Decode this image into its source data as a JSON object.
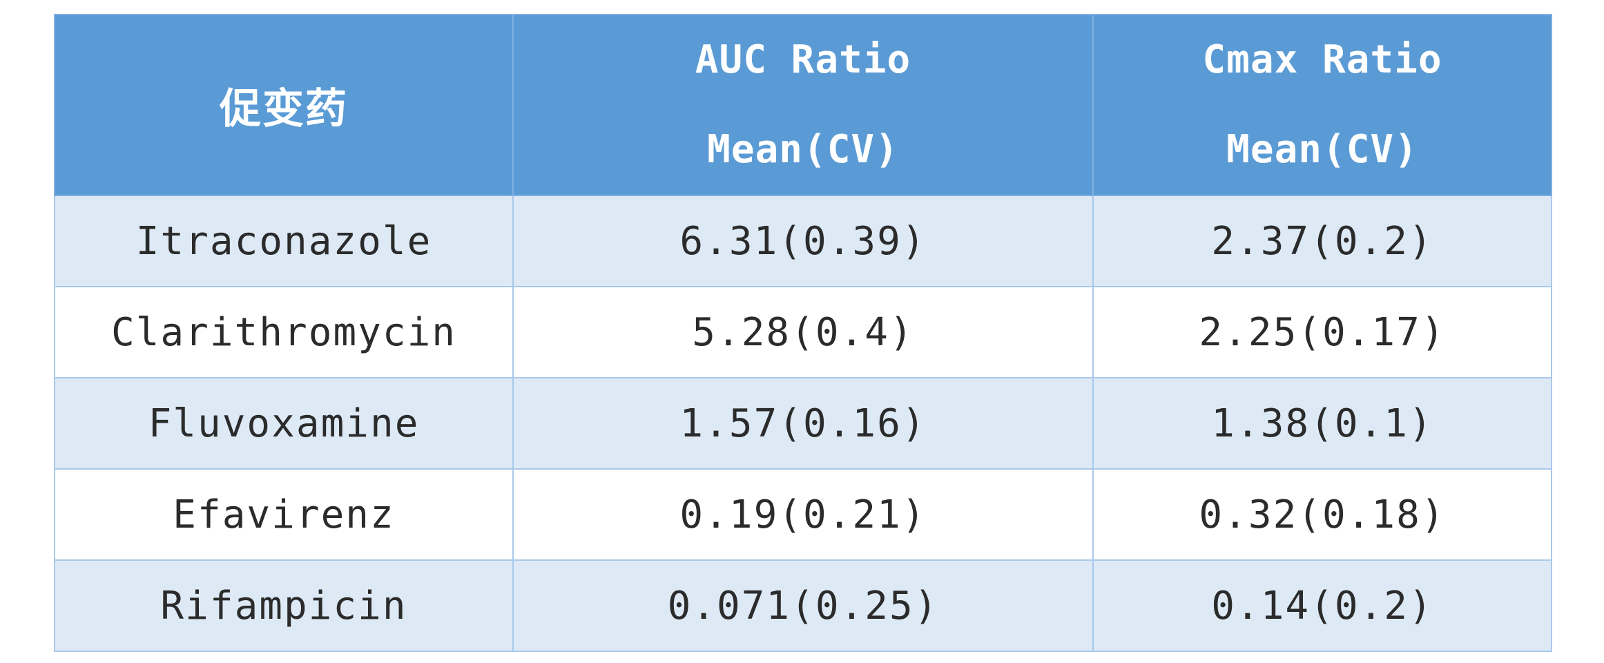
{
  "table": {
    "header": {
      "col1": "促变药",
      "col2_line1": "AUC Ratio",
      "col2_line2": "Mean(CV)",
      "col3_line1": "Cmax Ratio",
      "col3_line2": "Mean(CV)"
    },
    "rows": [
      {
        "drug": "Itraconazole",
        "auc": "6.31(0.39)",
        "cmax": "2.37(0.2)"
      },
      {
        "drug": "Clarithromycin",
        "auc": "5.28(0.4)",
        "cmax": "2.25(0.17)"
      },
      {
        "drug": "Fluvoxamine",
        "auc": "1.57(0.16)",
        "cmax": "1.38(0.1)"
      },
      {
        "drug": "Efavirenz",
        "auc": "0.19(0.21)",
        "cmax": "0.32(0.18)"
      },
      {
        "drug": "Rifampicin",
        "auc": "0.071(0.25)",
        "cmax": "0.14(0.2)"
      }
    ]
  },
  "colors": {
    "header_bg": "#5b9bd5",
    "row_shaded": "#ddeaf6",
    "row_plain": "#ffffff",
    "border": "#a9c8ea"
  }
}
